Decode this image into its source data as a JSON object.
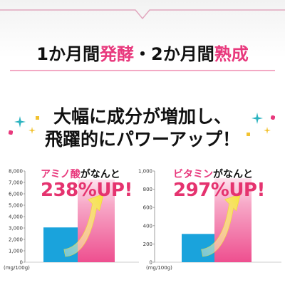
{
  "headline": {
    "part1": "1か月間",
    "part2": "発酵",
    "part3": "・2か月間",
    "part4": "熟成"
  },
  "subheadline": {
    "line1": "大幅に成分が増加し、",
    "line2": "飛躍的にパワーアップ！"
  },
  "colors": {
    "accent_pink": "#e8397d",
    "before_bar": "#1aa3dc",
    "after_bar": "#ee4f8f",
    "arrow": "#f5e53a"
  },
  "chart_data": [
    {
      "type": "bar",
      "unit_label": "(mg/100g)",
      "callout_name": "アミノ酸",
      "callout_suffix": "がなんと",
      "callout_value": "238%UP!",
      "yticks": [
        "8,000",
        "7,000",
        "6,000",
        "5,000",
        "4,000",
        "3,000",
        "2,000",
        "1,000",
        "0"
      ],
      "ylim": [
        0,
        8000
      ],
      "values": [
        3050,
        7260
      ],
      "colors": [
        "#1aa3dc",
        "#ee4f8f"
      ]
    },
    {
      "type": "bar",
      "unit_label": "(mg/100g)",
      "callout_name": "ビタミン",
      "callout_suffix": "がなんと",
      "callout_value": "297%UP!",
      "yticks": [
        "1,000",
        "800",
        "600",
        "400",
        "200",
        "0"
      ],
      "ylim": [
        0,
        1000
      ],
      "values": [
        310,
        920
      ],
      "colors": [
        "#1aa3dc",
        "#ee4f8f"
      ]
    }
  ]
}
